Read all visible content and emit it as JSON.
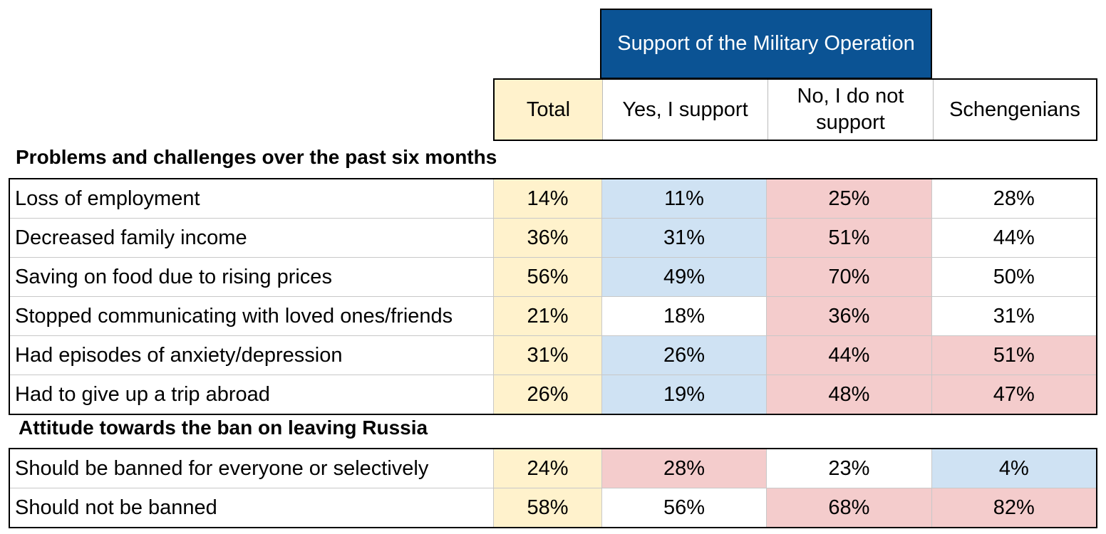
{
  "header": {
    "group_title": "Support of the Military Operation",
    "columns": [
      "Total",
      "Yes, I support",
      "No, I do not support",
      "Schengenians"
    ]
  },
  "sections": [
    {
      "title": "Problems and challenges over the past six months",
      "rows": [
        {
          "label": "Loss of employment",
          "values": [
            "14%",
            "11%",
            "25%",
            "28%"
          ],
          "highlights": [
            "total",
            "blue",
            "red",
            "none"
          ]
        },
        {
          "label": "Decreased family income",
          "values": [
            "36%",
            "31%",
            "51%",
            "44%"
          ],
          "highlights": [
            "total",
            "blue",
            "red",
            "none"
          ]
        },
        {
          "label": "Saving on food due to rising prices",
          "values": [
            "56%",
            "49%",
            "70%",
            "50%"
          ],
          "highlights": [
            "total",
            "blue",
            "red",
            "none"
          ]
        },
        {
          "label": "Stopped communicating with loved ones/friends",
          "values": [
            "21%",
            "18%",
            "36%",
            "31%"
          ],
          "highlights": [
            "total",
            "none",
            "red",
            "none"
          ]
        },
        {
          "label": "Had episodes of anxiety/depression",
          "values": [
            "31%",
            "26%",
            "44%",
            "51%"
          ],
          "highlights": [
            "total",
            "blue",
            "red",
            "red"
          ]
        },
        {
          "label": "Had to give up a trip abroad",
          "values": [
            "26%",
            "19%",
            "48%",
            "47%"
          ],
          "highlights": [
            "total",
            "blue",
            "red",
            "red"
          ]
        }
      ]
    },
    {
      "title": "Attitude towards the ban on leaving Russia",
      "rows": [
        {
          "label": "Should be banned for everyone or selectively",
          "values": [
            "24%",
            "28%",
            "23%",
            "4%"
          ],
          "highlights": [
            "total",
            "red",
            "none",
            "blue"
          ]
        },
        {
          "label": "Should not be banned",
          "values": [
            "58%",
            "56%",
            "68%",
            "82%"
          ],
          "highlights": [
            "total",
            "none",
            "red",
            "red"
          ]
        }
      ]
    }
  ],
  "colors": {
    "header_blue": "#0b5394",
    "total": "#fff2cc",
    "blue": "#cfe2f3",
    "red": "#f4cccc"
  }
}
